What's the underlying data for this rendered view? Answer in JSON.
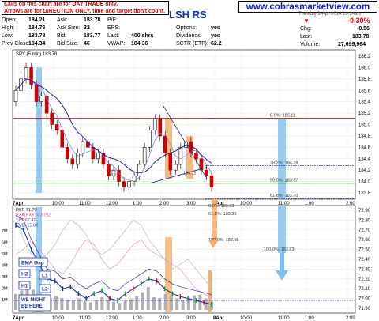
{
  "header": {
    "note_line1": "Calls on this chart are for DAY TRADE only.",
    "note_line2": "Arrows are for DIRECTION ONLY, time and target don't count.",
    "symbol": "LSH RS",
    "site": "www.cobrasmarketview.com",
    "timestamp": "Tuesday 8-Apr-2014  10:24am",
    "quote": {
      "open": {
        "label": "Open:",
        "value": "184.21"
      },
      "high": {
        "label": "High:",
        "value": "184.76"
      },
      "low": {
        "label": "Low:",
        "value": "183.78"
      },
      "prev_close": {
        "label": "Prev Close:",
        "value": "184.34"
      },
      "ask": {
        "label": "Ask:",
        "value": "183.78"
      },
      "ask_size": {
        "label": "Ask Size:",
        "value": "32"
      },
      "bid": {
        "label": "Bid:",
        "value": "183.77"
      },
      "bid_size": {
        "label": "Bid Size:",
        "value": "46"
      },
      "pe": {
        "label": "P/E:",
        "value": ""
      },
      "eps": {
        "label": "EPS:",
        "value": ""
      },
      "last_vol": {
        "label": "Last:",
        "value": "400 shrs"
      },
      "vwap": {
        "label": "VWAP:",
        "value": "184.36"
      },
      "options": {
        "label": "Options:",
        "value": "yes"
      },
      "dividends": {
        "label": "Dividends:",
        "value": "yes"
      },
      "sctr": {
        "label": "SCTR (ETF):",
        "value": "62.2"
      },
      "chg_pct": "-0.30%",
      "chg": {
        "label": "Chg:",
        "value": "-0.56"
      },
      "last": {
        "label": "Last:",
        "value": "183.78"
      },
      "volume": {
        "label": "Volume:",
        "value": "27,699,964"
      }
    }
  },
  "chart_data": [
    {
      "type": "line",
      "title": "SPY (5 min) 183.78",
      "legend": [
        "SPY (5 min) 183.78"
      ],
      "ylim": [
        183.8,
        186.2
      ],
      "y_ticks": [
        "183.8",
        "184.0",
        "184.2",
        "184.4",
        "184.6",
        "184.8",
        "185.0",
        "185.2",
        "185.4",
        "185.6",
        "185.8",
        "186.0",
        "186.2"
      ],
      "x_ticks": [
        "7Apr",
        "10:00",
        "11:00",
        "12:00",
        "1:00",
        "2:00",
        "3:00",
        "8Apr",
        "10:00",
        "11:00",
        "1:00",
        "2:00"
      ],
      "close": [
        185.6,
        185.8,
        186.0,
        185.7,
        185.4,
        185.5,
        185.2,
        185.0,
        184.9,
        184.6,
        184.4,
        184.3,
        184.5,
        184.7,
        184.6,
        184.4,
        184.5,
        184.3,
        184.1,
        184.2,
        184.0,
        183.9,
        184.0,
        184.1,
        184.3,
        184.6,
        184.9,
        185.1,
        184.8,
        184.5,
        184.2,
        184.3,
        184.6,
        184.7,
        184.5,
        184.4,
        184.2,
        184.1,
        183.9
      ],
      "fib_levels": [
        {
          "label": "0.0%: 185.11",
          "value": 185.11
        },
        {
          "label": "38.2%: 184.28",
          "value": 184.28
        },
        {
          "label": "50.0%: 183.97",
          "value": 183.97
        },
        {
          "label": "61.8%: 183.70",
          "value": 183.7
        }
      ],
      "annotation": "184.11"
    },
    {
      "type": "bar",
      "title": "RSP 71.79",
      "legend": [
        "RSP 71.79",
        "PXA(PXY) 0.9792",
        "TBT 67.42",
        "EVDI 15.82"
      ],
      "ylim": [
        71.9,
        72.9
      ],
      "y_ticks": [
        "72.90",
        "72.80",
        "72.70",
        "72.60",
        "72.50",
        "72.40",
        "72.30",
        "72.20",
        "72.10",
        "72.00",
        "71.90"
      ],
      "volume_ticks": [
        "7M",
        "6M",
        "5M",
        "4M",
        "3M",
        "2M",
        "1M"
      ],
      "fib_levels": [
        {
          "label": "0.0%: 183.63",
          "value": 183.63
        },
        {
          "label": "61.8%: 183.39",
          "value": 183.39
        },
        {
          "label": "100.0%: 182.95",
          "value": 182.95
        },
        {
          "label": "100.0%: 182.83",
          "value": 182.83
        }
      ],
      "volume": [
        2.5,
        3.1,
        4.0,
        3.2,
        2.8,
        2.0,
        1.8,
        2.2,
        1.9,
        1.6,
        1.5,
        1.8,
        1.4,
        1.2,
        1.6,
        2.0,
        1.7,
        1.3,
        1.1,
        1.4,
        1.7,
        2.2,
        2.8,
        3.6,
        2.0,
        1.9,
        2.5,
        2.1,
        1.8,
        1.6,
        1.9,
        2.3,
        2.4,
        1.8,
        1.3
      ]
    }
  ],
  "labels": {
    "ema_gap": "EMA Gap",
    "h2": "H2",
    "h1": "H1",
    "l1": "L1",
    "l2": "L2",
    "we_might": "WE MIGHT",
    "be_here": "BE HERE."
  },
  "colors": {
    "up_candle": "#008000",
    "down_candle": "#d00000",
    "blue_bar": "#7fbff0",
    "orange_bar": "#f5b070",
    "ma_line": "#2020a0",
    "accent": "#1020d0"
  }
}
